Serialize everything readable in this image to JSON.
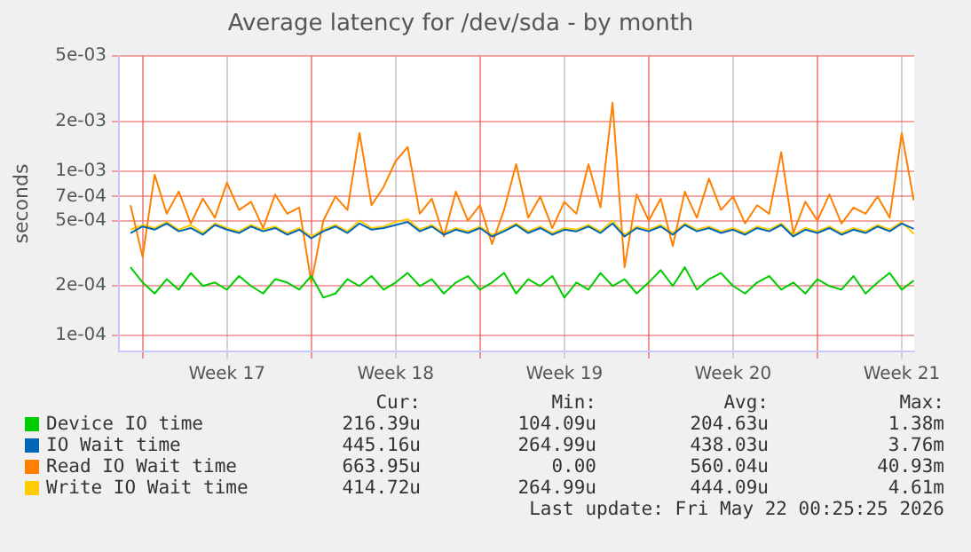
{
  "chart_data": {
    "type": "line",
    "title": "Average latency for /dev/sda - by month",
    "ylabel": "seconds",
    "log": "y",
    "grid": true,
    "legend": "bottom",
    "marker": "none",
    "line_style": "solid",
    "x": [
      "2026-04-19T12:00",
      "2026-04-20T00:00",
      "2026-04-20T12:00",
      "2026-04-21T00:00",
      "2026-04-21T12:00",
      "2026-04-22T00:00",
      "2026-04-22T12:00",
      "2026-04-23T00:00",
      "2026-04-23T12:00",
      "2026-04-24T00:00",
      "2026-04-24T12:00",
      "2026-04-25T00:00",
      "2026-04-25T12:00",
      "2026-04-26T00:00",
      "2026-04-26T12:00",
      "2026-04-27T00:00",
      "2026-04-27T12:00",
      "2026-04-28T00:00",
      "2026-04-28T12:00",
      "2026-04-29T00:00",
      "2026-04-29T12:00",
      "2026-04-30T00:00",
      "2026-04-30T12:00",
      "2026-05-01T00:00",
      "2026-05-01T12:00",
      "2026-05-02T00:00",
      "2026-05-02T12:00",
      "2026-05-03T00:00",
      "2026-05-03T12:00",
      "2026-05-04T00:00",
      "2026-05-04T12:00",
      "2026-05-05T00:00",
      "2026-05-05T12:00",
      "2026-05-06T00:00",
      "2026-05-06T12:00",
      "2026-05-07T00:00",
      "2026-05-07T12:00",
      "2026-05-08T00:00",
      "2026-05-08T12:00",
      "2026-05-09T00:00",
      "2026-05-09T12:00",
      "2026-05-10T00:00",
      "2026-05-10T12:00",
      "2026-05-11T00:00",
      "2026-05-11T12:00",
      "2026-05-12T00:00",
      "2026-05-12T12:00",
      "2026-05-13T00:00",
      "2026-05-13T12:00",
      "2026-05-14T00:00",
      "2026-05-14T12:00",
      "2026-05-15T00:00",
      "2026-05-15T12:00",
      "2026-05-16T00:00",
      "2026-05-16T12:00",
      "2026-05-17T00:00",
      "2026-05-17T12:00",
      "2026-05-18T00:00",
      "2026-05-18T12:00",
      "2026-05-19T00:00",
      "2026-05-19T12:00",
      "2026-05-20T00:00",
      "2026-05-20T12:00",
      "2026-05-21T00:00",
      "2026-05-21T12:00",
      "2026-05-22T00:00"
    ],
    "xlim": [
      "2026-04-19T00:25",
      "2026-05-22T00:25"
    ],
    "xticks": [
      {
        "value": "2026-04-20T00:00",
        "label": null
      },
      {
        "value": "2026-04-23T12:00",
        "label": "Week 17"
      },
      {
        "value": "2026-04-27T00:00",
        "label": null
      },
      {
        "value": "2026-04-30T12:00",
        "label": "Week 18"
      },
      {
        "value": "2026-05-04T00:00",
        "label": null
      },
      {
        "value": "2026-05-07T12:00",
        "label": "Week 19"
      },
      {
        "value": "2026-05-11T00:00",
        "label": null
      },
      {
        "value": "2026-05-14T12:00",
        "label": "Week 20"
      },
      {
        "value": "2026-05-18T00:00",
        "label": null
      },
      {
        "value": "2026-05-21T12:00",
        "label": "Week 21"
      }
    ],
    "ylim": [
      8e-05,
      0.005
    ],
    "yticks": [
      {
        "value": 0.0001,
        "label": "1e-04"
      },
      {
        "value": 0.0002,
        "label": "2e-04"
      },
      {
        "value": 0.0005,
        "label": "5e-04"
      },
      {
        "value": 0.0007,
        "label": "7e-04"
      },
      {
        "value": 0.001,
        "label": "1e-03"
      },
      {
        "value": 0.002,
        "label": "2e-03"
      },
      {
        "value": 0.005,
        "label": "5e-03"
      }
    ],
    "series": [
      {
        "name": "Device IO time",
        "color": "#00cc00",
        "values": [
          0.00026,
          0.00021,
          0.00018,
          0.00022,
          0.00019,
          0.00024,
          0.0002,
          0.00021,
          0.00019,
          0.00023,
          0.0002,
          0.00018,
          0.00022,
          0.00021,
          0.00019,
          0.00023,
          0.00017,
          0.00018,
          0.00022,
          0.0002,
          0.00023,
          0.00019,
          0.00021,
          0.00024,
          0.0002,
          0.00022,
          0.00018,
          0.00021,
          0.00023,
          0.00019,
          0.00021,
          0.00024,
          0.00018,
          0.00022,
          0.0002,
          0.00023,
          0.00017,
          0.00021,
          0.00019,
          0.00024,
          0.0002,
          0.00022,
          0.00018,
          0.00021,
          0.00025,
          0.0002,
          0.00026,
          0.00019,
          0.00022,
          0.00024,
          0.0002,
          0.00018,
          0.00021,
          0.00023,
          0.00019,
          0.00021,
          0.00018,
          0.00022,
          0.0002,
          0.00019,
          0.00023,
          0.00018,
          0.00021,
          0.00024,
          0.00019,
          0.000216
        ]
      },
      {
        "name": "IO Wait time",
        "color": "#0066b3",
        "values": [
          0.00042,
          0.00046,
          0.00044,
          0.00048,
          0.00043,
          0.00045,
          0.00041,
          0.00047,
          0.00044,
          0.00042,
          0.00046,
          0.00043,
          0.00045,
          0.00041,
          0.00044,
          0.00039,
          0.00043,
          0.00046,
          0.00042,
          0.00048,
          0.00044,
          0.00045,
          0.00047,
          0.00049,
          0.00043,
          0.00046,
          0.00041,
          0.00044,
          0.00042,
          0.00045,
          0.0004,
          0.00043,
          0.00047,
          0.00042,
          0.00045,
          0.00041,
          0.00044,
          0.00043,
          0.00046,
          0.00042,
          0.00048,
          0.0004,
          0.00045,
          0.00043,
          0.00046,
          0.00041,
          0.00047,
          0.00043,
          0.00045,
          0.00042,
          0.00044,
          0.00041,
          0.00045,
          0.00043,
          0.00047,
          0.0004,
          0.00044,
          0.00042,
          0.00045,
          0.00041,
          0.00044,
          0.00042,
          0.00046,
          0.00043,
          0.00048,
          0.000445
        ]
      },
      {
        "name": "Read IO Wait time",
        "color": "#ff8000",
        "values": [
          0.00062,
          0.0003,
          0.00095,
          0.00055,
          0.00075,
          0.00048,
          0.00068,
          0.00052,
          0.00085,
          0.00058,
          0.00065,
          0.00045,
          0.00072,
          0.00055,
          0.0006,
          0.00021,
          0.0005,
          0.0007,
          0.00058,
          0.0017,
          0.00062,
          0.0008,
          0.00115,
          0.0014,
          0.00055,
          0.00068,
          0.0004,
          0.00075,
          0.0005,
          0.00062,
          0.00036,
          0.00058,
          0.0011,
          0.00052,
          0.0007,
          0.00045,
          0.00065,
          0.00055,
          0.0011,
          0.0006,
          0.0026,
          0.00026,
          0.00072,
          0.0005,
          0.00068,
          0.00035,
          0.00075,
          0.00052,
          0.0009,
          0.00058,
          0.0007,
          0.00048,
          0.00062,
          0.00055,
          0.0013,
          0.00042,
          0.00065,
          0.0005,
          0.00072,
          0.00048,
          0.0006,
          0.00055,
          0.0007,
          0.00052,
          0.0017,
          0.00066
        ]
      },
      {
        "name": "Write IO Wait time",
        "color": "#ffcc00",
        "values": [
          0.00044,
          0.00047,
          0.00045,
          0.00049,
          0.00044,
          0.00047,
          0.00042,
          0.00048,
          0.00045,
          0.00043,
          0.00047,
          0.00044,
          0.00046,
          0.00042,
          0.00045,
          0.0004,
          0.00044,
          0.00047,
          0.00043,
          0.0005,
          0.00045,
          0.00046,
          0.00049,
          0.00051,
          0.00044,
          0.00047,
          0.00042,
          0.00045,
          0.00043,
          0.00046,
          0.00041,
          0.00044,
          0.00048,
          0.00043,
          0.00046,
          0.00042,
          0.00045,
          0.00044,
          0.00047,
          0.00043,
          0.0005,
          0.00041,
          0.00046,
          0.00044,
          0.00047,
          0.00042,
          0.00048,
          0.00044,
          0.00046,
          0.00043,
          0.00045,
          0.00042,
          0.00046,
          0.00044,
          0.00048,
          0.00041,
          0.00045,
          0.00043,
          0.00046,
          0.00042,
          0.00045,
          0.00043,
          0.00047,
          0.00044,
          0.00049,
          0.000415
        ]
      }
    ],
    "annotations": [
      "Cur:",
      "Min:",
      "Avg:",
      "Max:",
      "216.39u",
      "104.09u",
      "204.63u",
      "1.38m",
      "445.16u",
      "264.99u",
      "438.03u",
      "3.76m",
      "663.95u",
      "0.00",
      "560.04u",
      "40.93m",
      "414.72u",
      "264.99u",
      "444.09u",
      "4.61m",
      "Last update: Fri May 22 00:25:25 2026"
    ]
  }
}
